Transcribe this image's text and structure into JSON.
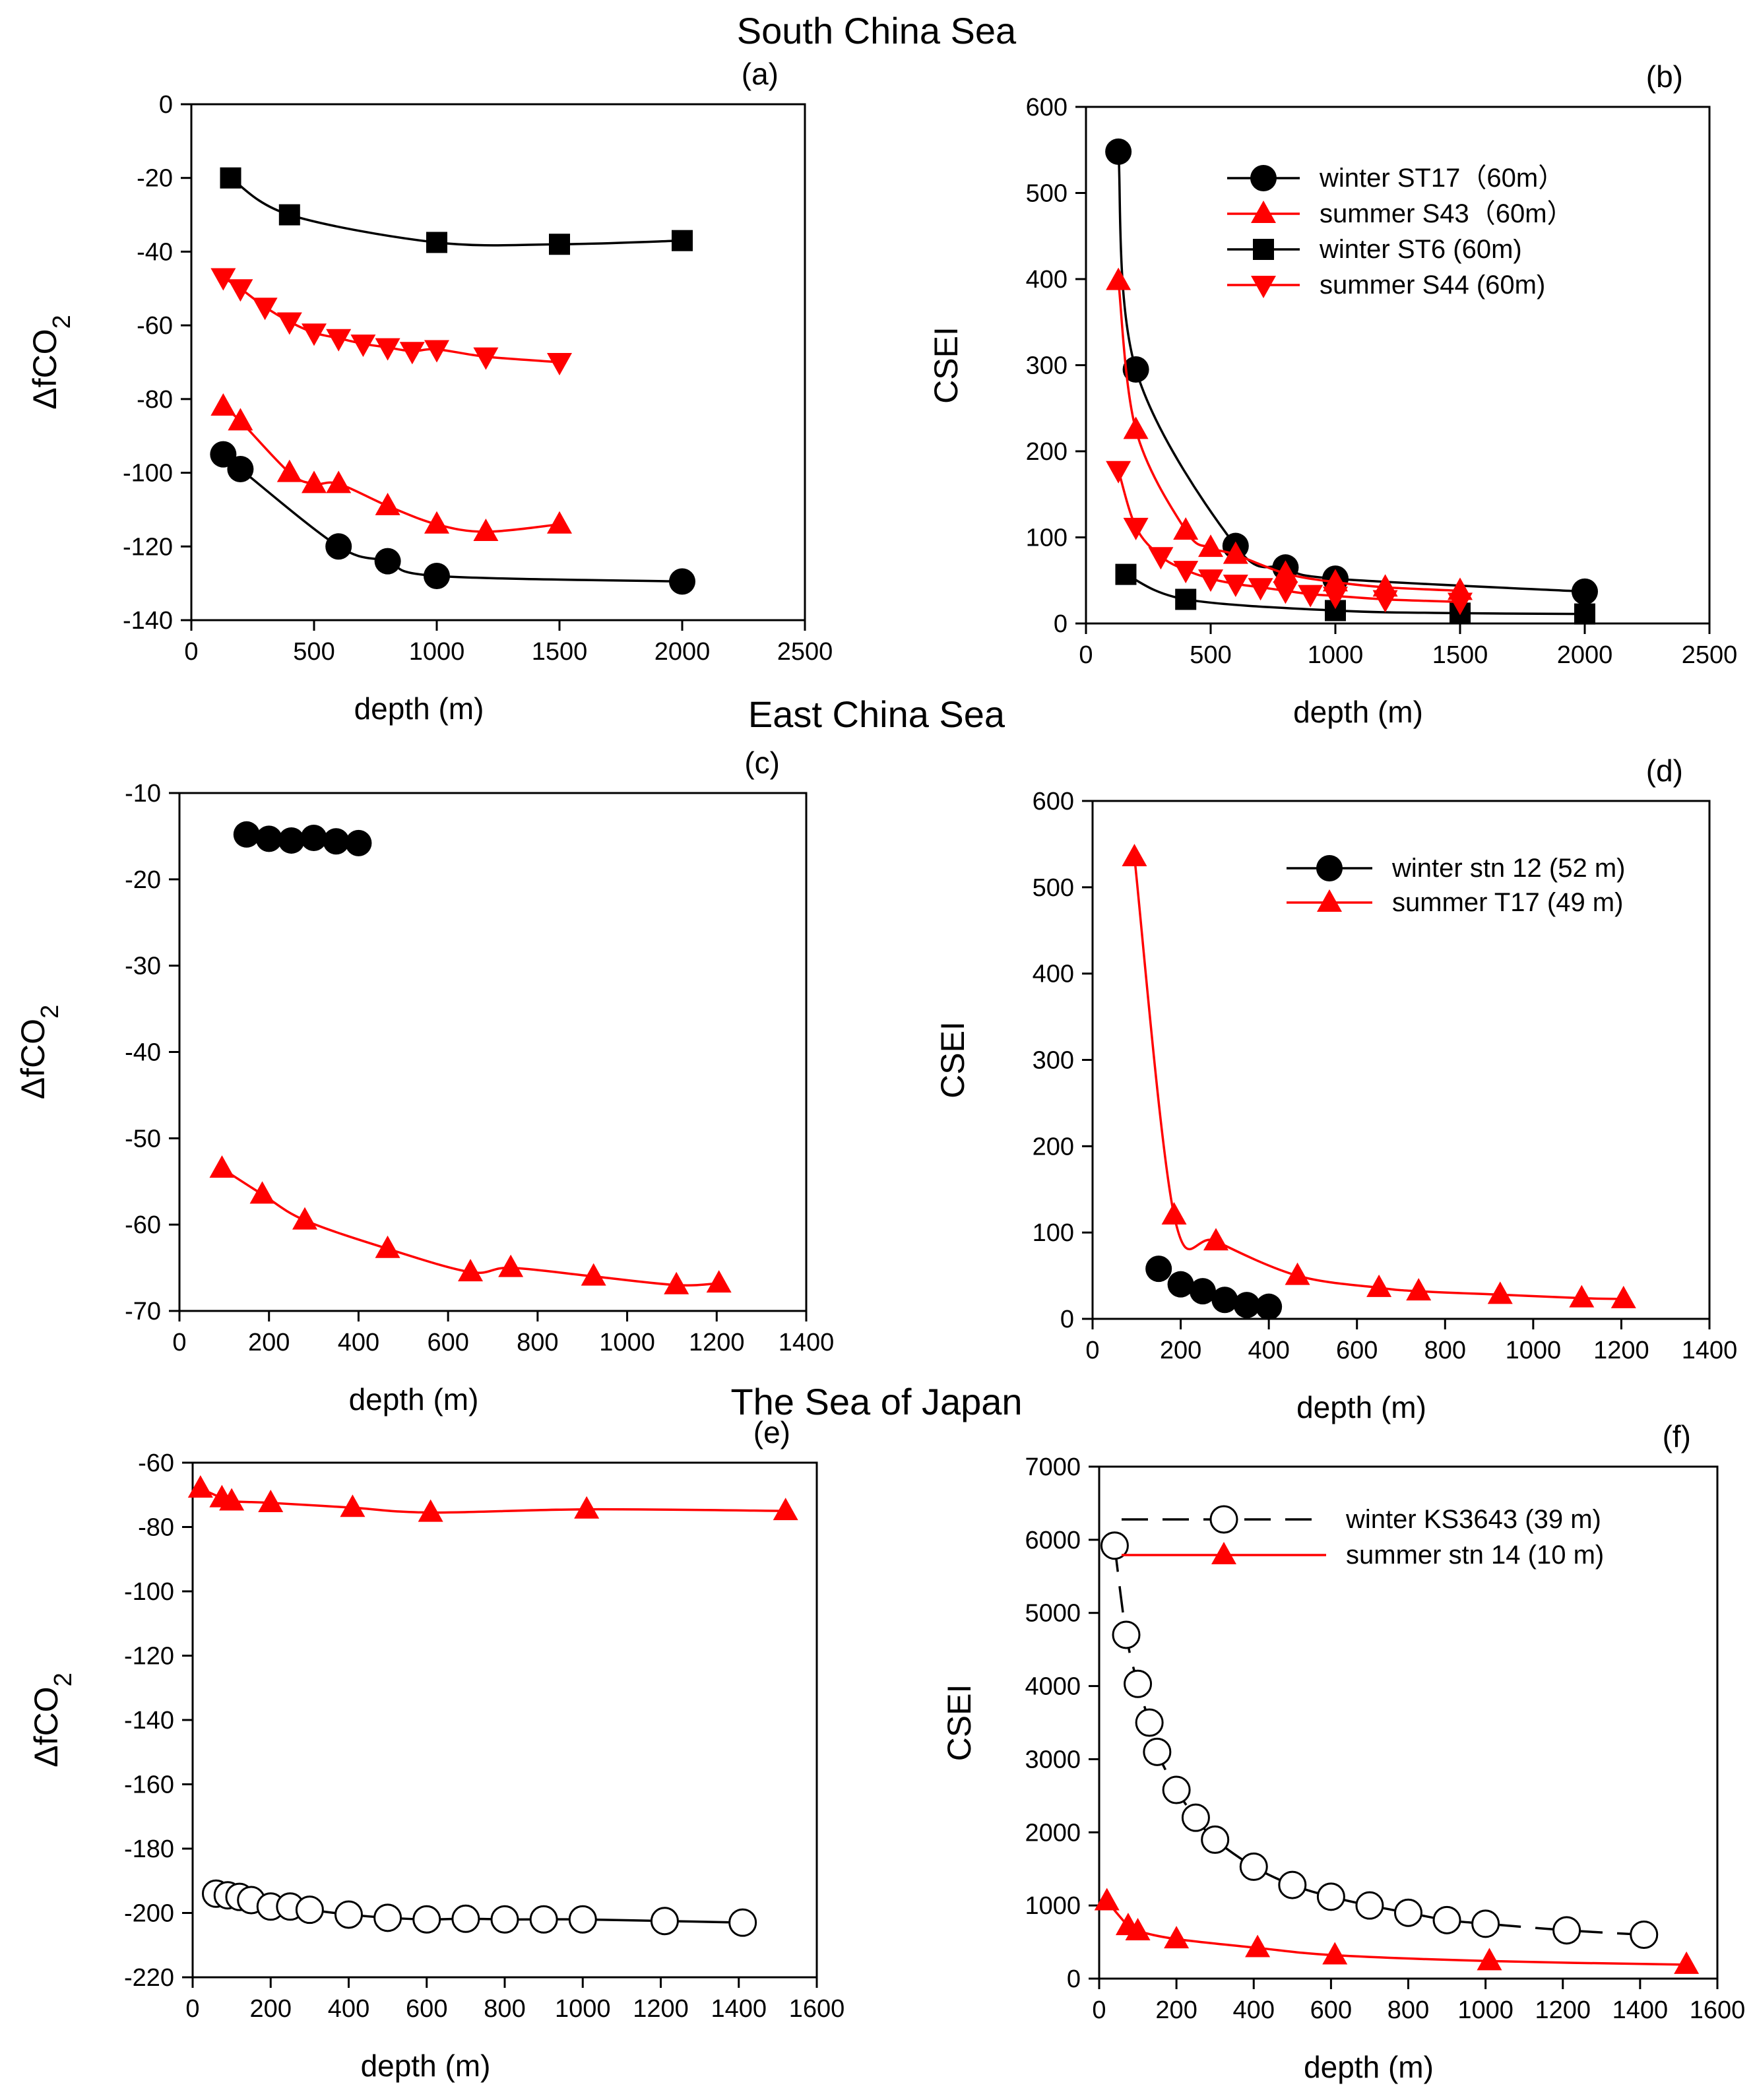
{
  "region_titles": {
    "scs": "South China Sea",
    "ecs": "East China Sea",
    "soj": "The Sea of Japan"
  },
  "chart_data": [
    {
      "id": "a",
      "panel_label": "(a)",
      "type": "line",
      "xlabel": "depth (m)",
      "ylabel": "ΔfCO₂",
      "xlim": [
        0,
        2500
      ],
      "xticks": [
        0,
        500,
        1000,
        1500,
        2000,
        2500
      ],
      "ylim": [
        -140,
        0
      ],
      "yticks": [
        0,
        -20,
        -40,
        -60,
        -80,
        -100,
        -120,
        -140
      ],
      "legend": null,
      "series": [
        {
          "name": "winter ST6 (60m)",
          "color": "#000000",
          "marker": "square",
          "dash": "",
          "x": [
            160,
            400,
            1000,
            1500,
            2000
          ],
          "y": [
            -20,
            -30,
            -37.5,
            -38,
            -37
          ]
        },
        {
          "name": "summer S44 (60m)",
          "color": "#ff0000",
          "marker": "tri-down",
          "dash": "",
          "x": [
            130,
            200,
            300,
            400,
            500,
            600,
            700,
            800,
            900,
            1000,
            1200,
            1500
          ],
          "y": [
            -47,
            -50,
            -55,
            -59,
            -62,
            -63.5,
            -65,
            -66,
            -67,
            -66.5,
            -68.5,
            -70
          ]
        },
        {
          "name": "summer S43 (60m)",
          "color": "#ff0000",
          "marker": "tri-up",
          "dash": "",
          "x": [
            130,
            200,
            400,
            500,
            600,
            800,
            1000,
            1200,
            1500
          ],
          "y": [
            -82,
            -86,
            -100,
            -103,
            -103,
            -109,
            -114,
            -116,
            -114
          ]
        },
        {
          "name": "winter ST17 (60m)",
          "color": "#000000",
          "marker": "circle",
          "dash": "",
          "x": [
            130,
            200,
            600,
            800,
            1000,
            2000
          ],
          "y": [
            -95,
            -99,
            -120,
            -124,
            -128,
            -129.5
          ]
        }
      ]
    },
    {
      "id": "b",
      "panel_label": "(b)",
      "type": "line",
      "xlabel": "depth (m)",
      "ylabel": "CSEI",
      "xlim": [
        0,
        2500
      ],
      "xticks": [
        0,
        500,
        1000,
        1500,
        2000,
        2500
      ],
      "ylim": [
        0,
        600
      ],
      "yticks": [
        0,
        100,
        200,
        300,
        400,
        500,
        600
      ],
      "legend": "top-right",
      "series": [
        {
          "name": "winter ST17（60m）",
          "color": "#000000",
          "marker": "circle",
          "dash": "",
          "x": [
            130,
            200,
            600,
            800,
            1000,
            2000
          ],
          "y": [
            548,
            295,
            90,
            65,
            52,
            37
          ]
        },
        {
          "name": "summer S43（60m）",
          "color": "#ff0000",
          "marker": "tri-up",
          "dash": "",
          "x": [
            130,
            200,
            400,
            500,
            600,
            800,
            1000,
            1200,
            1500
          ],
          "y": [
            398,
            225,
            108,
            88,
            80,
            58,
            48,
            42,
            38
          ]
        },
        {
          "name": "winter ST6 (60m)",
          "color": "#000000",
          "marker": "square",
          "dash": "",
          "x": [
            160,
            400,
            1000,
            1500,
            2000
          ],
          "y": [
            57,
            28,
            15,
            12,
            11
          ]
        },
        {
          "name": "summer S44 (60m)",
          "color": "#ff0000",
          "marker": "tri-down",
          "dash": "",
          "x": [
            130,
            200,
            300,
            400,
            500,
            600,
            700,
            800,
            900,
            1000,
            1200,
            1500
          ],
          "y": [
            178,
            112,
            78,
            62,
            52,
            46,
            42,
            38,
            34,
            32,
            28,
            25
          ]
        }
      ]
    },
    {
      "id": "c",
      "panel_label": "(c)",
      "type": "line",
      "xlabel": "depth (m)",
      "ylabel": "ΔfCO₂",
      "xlim": [
        0,
        1400
      ],
      "xticks": [
        0,
        200,
        400,
        600,
        800,
        1000,
        1200,
        1400
      ],
      "ylim": [
        -70,
        -10
      ],
      "yticks": [
        -10,
        -20,
        -30,
        -40,
        -50,
        -60,
        -70
      ],
      "legend": null,
      "series": [
        {
          "name": "winter stn 12 (52 m)",
          "color": "#000000",
          "marker": "circle",
          "dash": "",
          "noline": true,
          "x": [
            150,
            200,
            250,
            300,
            350,
            400
          ],
          "y": [
            -14.8,
            -15.3,
            -15.5,
            -15.2,
            -15.6,
            -15.8
          ]
        },
        {
          "name": "summer T17 (49 m)",
          "color": "#ff0000",
          "marker": "tri-up",
          "dash": "",
          "x": [
            95,
            185,
            280,
            465,
            650,
            740,
            925,
            1110,
            1205
          ],
          "y": [
            -53.5,
            -56.5,
            -59.5,
            -62.8,
            -65.5,
            -65,
            -66,
            -67,
            -66.8
          ]
        }
      ]
    },
    {
      "id": "d",
      "panel_label": "(d)",
      "type": "line",
      "xlabel": "depth (m)",
      "ylabel": "CSEI",
      "xlim": [
        0,
        1400
      ],
      "xticks": [
        0,
        200,
        400,
        600,
        800,
        1000,
        1200,
        1400
      ],
      "ylim": [
        0,
        600
      ],
      "yticks": [
        0,
        100,
        200,
        300,
        400,
        500,
        600
      ],
      "legend": "top-right",
      "series": [
        {
          "name": "winter stn 12 (52 m)",
          "color": "#000000",
          "marker": "circle",
          "dash": "",
          "noline": true,
          "x": [
            150,
            200,
            250,
            300,
            350,
            400
          ],
          "y": [
            58,
            40,
            32,
            22,
            16,
            14
          ]
        },
        {
          "name": "summer T17 (49 m)",
          "color": "#ff0000",
          "marker": "tri-up",
          "dash": "",
          "x": [
            95,
            185,
            280,
            465,
            650,
            740,
            925,
            1110,
            1205
          ],
          "y": [
            535,
            120,
            90,
            50,
            36,
            32,
            28,
            24,
            23
          ]
        }
      ]
    },
    {
      "id": "e",
      "panel_label": "(e)",
      "type": "line",
      "xlabel": "depth (m)",
      "ylabel": "ΔfCO₂",
      "xlim": [
        0,
        1600
      ],
      "xticks": [
        0,
        200,
        400,
        600,
        800,
        1000,
        1200,
        1400,
        1600
      ],
      "ylim": [
        -220,
        -60
      ],
      "yticks": [
        -60,
        -80,
        -100,
        -120,
        -140,
        -160,
        -180,
        -200,
        -220
      ],
      "legend": null,
      "series": [
        {
          "name": "summer stn 14 (10 m)",
          "color": "#ff0000",
          "marker": "tri-up",
          "dash": "",
          "x": [
            20,
            75,
            100,
            200,
            410,
            610,
            1010,
            1520
          ],
          "y": [
            -68,
            -71,
            -72,
            -72.5,
            -74,
            -75.5,
            -74.5,
            -75
          ]
        },
        {
          "name": "winter KS3643 (39 m)",
          "color": "#000000",
          "marker": "open-circle",
          "dash": "",
          "x": [
            60,
            90,
            120,
            150,
            200,
            250,
            300,
            400,
            500,
            600,
            700,
            800,
            900,
            1000,
            1210,
            1410
          ],
          "y": [
            -194,
            -194.5,
            -195,
            -196,
            -198,
            -198,
            -199,
            -200.5,
            -201.5,
            -202,
            -201.8,
            -202,
            -202,
            -202,
            -202.5,
            -203
          ]
        }
      ]
    },
    {
      "id": "f",
      "panel_label": "(f)",
      "type": "line",
      "xlabel": "depth (m)",
      "ylabel": "CSEI",
      "xlim": [
        0,
        1600
      ],
      "xticks": [
        0,
        200,
        400,
        600,
        800,
        1000,
        1200,
        1400,
        1600
      ],
      "ylim": [
        0,
        7000
      ],
      "yticks": [
        0,
        1000,
        2000,
        3000,
        4000,
        5000,
        6000,
        7000
      ],
      "legend": "top-right",
      "series": [
        {
          "name": "winter KS3643 (39 m)",
          "color": "#000000",
          "marker": "open-circle",
          "dash": "40,22",
          "x": [
            40,
            70,
            100,
            130,
            150,
            200,
            250,
            300,
            400,
            500,
            600,
            700,
            800,
            900,
            1000,
            1210,
            1410
          ],
          "y": [
            5920,
            4700,
            4030,
            3500,
            3100,
            2580,
            2200,
            1900,
            1530,
            1280,
            1120,
            1000,
            900,
            800,
            750,
            660,
            600
          ]
        },
        {
          "name": "summer stn 14 (10 m)",
          "color": "#ff0000",
          "marker": "tri-up",
          "dash": "",
          "x": [
            20,
            75,
            100,
            200,
            410,
            610,
            1010,
            1520
          ],
          "y": [
            1060,
            720,
            650,
            540,
            420,
            320,
            240,
            190
          ]
        }
      ]
    }
  ]
}
